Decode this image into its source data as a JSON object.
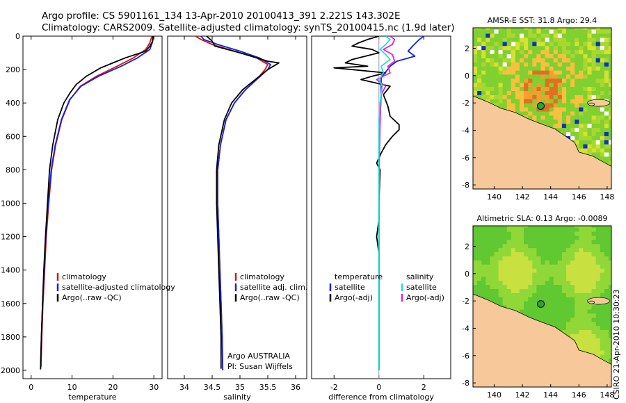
{
  "title_line1": "Argo profile: CS 5901161_134 13-Apr-2010 20100413_391 2.221S 143.302E",
  "title_line2": "Climatology: CARS2009. Satellite-adjusted climatology: synTS_20100415.nc (1.9d later)",
  "side_label": "CSIRO 21-Apr-2010 10:30:23",
  "credit": {
    "line1": "Argo AUSTRALIA",
    "line2": "PI: Susan Wijffels"
  },
  "colors": {
    "climatology": "#dd1111",
    "satellite": "#1122dd",
    "argo": "#000000",
    "satellite_sal": "#22dddd",
    "argo_sal": "#dd22dd",
    "land": "#f6c89a"
  },
  "chart_data": [
    {
      "type": "line",
      "xlabel": "temperature",
      "xlim": [
        -2,
        32
      ],
      "ylim": [
        2050,
        0
      ],
      "y_reversed": true,
      "xticks": [
        0,
        10,
        20,
        30
      ],
      "yticks": [
        0,
        200,
        400,
        600,
        800,
        1000,
        1200,
        1400,
        1600,
        1800,
        2000
      ],
      "legend": [
        {
          "label": "climatology",
          "color": "#dd1111"
        },
        {
          "label": "satellite-adjusted climatology",
          "color": "#1122dd"
        },
        {
          "label": "Argo(..raw -QC)",
          "color": "#000000"
        }
      ],
      "series": [
        {
          "color": "#dd1111",
          "points": [
            [
              29.5,
              0
            ],
            [
              29,
              40
            ],
            [
              28,
              80
            ],
            [
              25,
              130
            ],
            [
              21,
              180
            ],
            [
              16,
              240
            ],
            [
              12,
              300
            ],
            [
              9.5,
              380
            ],
            [
              7.5,
              500
            ],
            [
              6,
              650
            ],
            [
              5,
              800
            ],
            [
              4.3,
              1000
            ],
            [
              3.7,
              1200
            ],
            [
              3.3,
              1400
            ],
            [
              2.9,
              1600
            ],
            [
              2.6,
              1800
            ],
            [
              2.4,
              1980
            ]
          ]
        },
        {
          "color": "#1122dd",
          "points": [
            [
              29.8,
              0
            ],
            [
              29.6,
              40
            ],
            [
              29,
              80
            ],
            [
              26,
              130
            ],
            [
              22,
              180
            ],
            [
              16.5,
              240
            ],
            [
              12.2,
              300
            ],
            [
              9.4,
              380
            ],
            [
              7.4,
              500
            ],
            [
              5.9,
              650
            ],
            [
              4.9,
              800
            ],
            [
              4.2,
              1000
            ],
            [
              3.6,
              1200
            ],
            [
              3.2,
              1400
            ],
            [
              2.8,
              1600
            ],
            [
              2.5,
              1800
            ],
            [
              2.3,
              1995
            ]
          ]
        },
        {
          "color": "#000000",
          "points": [
            [
              29.8,
              0
            ],
            [
              29.7,
              30
            ],
            [
              29,
              60
            ],
            [
              28,
              90
            ],
            [
              23,
              130
            ],
            [
              20,
              160
            ],
            [
              17,
              190
            ],
            [
              13.5,
              240
            ],
            [
              11,
              290
            ],
            [
              9.5,
              340
            ],
            [
              8,
              400
            ],
            [
              6.5,
              500
            ],
            [
              5.3,
              650
            ],
            [
              4.5,
              800
            ],
            [
              4,
              1000
            ],
            [
              3.5,
              1200
            ],
            [
              3.1,
              1400
            ],
            [
              2.8,
              1600
            ],
            [
              2.5,
              1800
            ],
            [
              2.3,
              1990
            ]
          ]
        }
      ]
    },
    {
      "type": "line",
      "xlabel": "salinity",
      "xlim": [
        33.7,
        36.2
      ],
      "ylim": [
        2050,
        0
      ],
      "y_reversed": true,
      "xticks": [
        34,
        34.5,
        35,
        35.5,
        36
      ],
      "legend": [
        {
          "label": "climatology",
          "color": "#dd1111"
        },
        {
          "label": "satellite adj. clim.",
          "color": "#1122dd"
        },
        {
          "label": "Argo(..raw -QC)",
          "color": "#000000"
        }
      ],
      "series": [
        {
          "color": "#dd1111",
          "points": [
            [
              34.2,
              0
            ],
            [
              34.3,
              20
            ],
            [
              34.5,
              50
            ],
            [
              34.9,
              90
            ],
            [
              35.3,
              130
            ],
            [
              35.5,
              170
            ],
            [
              35.45,
              200
            ],
            [
              35.3,
              260
            ],
            [
              35.1,
              320
            ],
            [
              34.9,
              400
            ],
            [
              34.75,
              500
            ],
            [
              34.65,
              650
            ],
            [
              34.6,
              800
            ],
            [
              34.6,
              1000
            ],
            [
              34.62,
              1200
            ],
            [
              34.64,
              1400
            ],
            [
              34.66,
              1600
            ],
            [
              34.68,
              1800
            ],
            [
              34.69,
              2000
            ]
          ]
        },
        {
          "color": "#1122dd",
          "points": [
            [
              34.3,
              0
            ],
            [
              34.35,
              20
            ],
            [
              34.6,
              50
            ],
            [
              35,
              90
            ],
            [
              35.35,
              130
            ],
            [
              35.55,
              170
            ],
            [
              35.5,
              200
            ],
            [
              35.3,
              260
            ],
            [
              35.1,
              320
            ],
            [
              34.9,
              400
            ],
            [
              34.75,
              500
            ],
            [
              34.65,
              650
            ],
            [
              34.6,
              800
            ],
            [
              34.6,
              1000
            ],
            [
              34.62,
              1200
            ],
            [
              34.64,
              1400
            ],
            [
              34.66,
              1600
            ],
            [
              34.68,
              1800
            ],
            [
              34.69,
              2000
            ]
          ]
        },
        {
          "color": "#000000",
          "points": [
            [
              34.4,
              0
            ],
            [
              34.5,
              30
            ],
            [
              34.55,
              60
            ],
            [
              35,
              100
            ],
            [
              35.3,
              130
            ],
            [
              35.5,
              150
            ],
            [
              35.7,
              160
            ],
            [
              35.6,
              180
            ],
            [
              35.5,
              200
            ],
            [
              35.35,
              240
            ],
            [
              35.2,
              280
            ],
            [
              35.05,
              320
            ],
            [
              34.85,
              400
            ],
            [
              34.72,
              500
            ],
            [
              34.62,
              650
            ],
            [
              34.58,
              800
            ],
            [
              34.58,
              1000
            ],
            [
              34.6,
              1200
            ],
            [
              34.62,
              1400
            ],
            [
              34.64,
              1600
            ],
            [
              34.66,
              1800
            ],
            [
              34.66,
              1990
            ]
          ]
        }
      ]
    },
    {
      "type": "line",
      "xlabel": "difference from climatology",
      "xlim": [
        -3,
        3.2
      ],
      "ylim": [
        2050,
        0
      ],
      "y_reversed": true,
      "xticks": [
        -2,
        0,
        2
      ],
      "legend": [
        {
          "label": "temperature",
          "color": ""
        },
        {
          "label": "satellite",
          "color": "#1122dd"
        },
        {
          "label": "Argo(-adj)",
          "color": "#000000"
        },
        {
          "label": "salinity",
          "color": ""
        },
        {
          "label": "satellite",
          "color": "#22dddd"
        },
        {
          "label": "Argo(-adj)",
          "color": "#dd22dd"
        }
      ],
      "series": [
        {
          "color": "#000000",
          "points": [
            [
              0,
              0
            ],
            [
              -0.5,
              20
            ],
            [
              -0.9,
              40
            ],
            [
              -1.2,
              60
            ],
            [
              -0.3,
              80
            ],
            [
              0,
              100
            ],
            [
              -1.2,
              140
            ],
            [
              -1.5,
              160
            ],
            [
              -0.5,
              180
            ],
            [
              -2,
              190
            ],
            [
              -1.2,
              200
            ],
            [
              0.3,
              220
            ],
            [
              -0.3,
              240
            ],
            [
              -0.8,
              260
            ],
            [
              0.5,
              300
            ],
            [
              0.2,
              350
            ],
            [
              0.4,
              420
            ],
            [
              0.5,
              480
            ],
            [
              0.9,
              530
            ],
            [
              0.9,
              560
            ],
            [
              0.6,
              600
            ],
            [
              0.3,
              650
            ],
            [
              0.1,
              700
            ],
            [
              -0.1,
              760
            ],
            [
              0.05,
              800
            ],
            [
              0,
              1000
            ],
            [
              0,
              1100
            ],
            [
              -0.1,
              1200
            ],
            [
              0,
              1300
            ],
            [
              0,
              1600
            ],
            [
              0,
              2000
            ]
          ]
        },
        {
          "color": "#1122dd",
          "points": [
            [
              2,
              0
            ],
            [
              1.8,
              20
            ],
            [
              1.5,
              60
            ],
            [
              1.3,
              90
            ],
            [
              1.6,
              120
            ],
            [
              0.8,
              150
            ],
            [
              0.5,
              180
            ],
            [
              0.1,
              250
            ],
            [
              0.1,
              350
            ],
            [
              0.05,
              500
            ],
            [
              0.02,
              700
            ],
            [
              0,
              1000
            ],
            [
              0,
              1500
            ],
            [
              0,
              2000
            ]
          ]
        },
        {
          "color": "#dd22dd",
          "points": [
            [
              0.5,
              0
            ],
            [
              0.7,
              20
            ],
            [
              0.6,
              50
            ],
            [
              0.2,
              80
            ],
            [
              0.6,
              110
            ],
            [
              0.7,
              150
            ],
            [
              0.4,
              180
            ],
            [
              0.5,
              220
            ],
            [
              -0.1,
              260
            ],
            [
              0.3,
              300
            ],
            [
              0.1,
              350
            ],
            [
              0.05,
              500
            ],
            [
              0,
              700
            ],
            [
              0,
              1200
            ],
            [
              0,
              2000
            ]
          ]
        },
        {
          "color": "#22dddd",
          "points": [
            [
              0.3,
              0
            ],
            [
              0.5,
              20
            ],
            [
              0.3,
              50
            ],
            [
              0.05,
              80
            ],
            [
              0.3,
              110
            ],
            [
              0.5,
              140
            ],
            [
              0.1,
              180
            ],
            [
              0.2,
              220
            ],
            [
              0,
              260
            ],
            [
              0.15,
              300
            ],
            [
              0.05,
              400
            ],
            [
              0,
              500
            ],
            [
              0,
              2000
            ]
          ]
        }
      ]
    },
    {
      "type": "heatmap",
      "title": "AMSR-E SST: 31.8 Argo: 29.4",
      "xlim": [
        138.5,
        148.3
      ],
      "ylim": [
        -8.3,
        3.5
      ],
      "xticks": [
        140,
        142,
        144,
        146,
        148
      ],
      "yticks": [
        -8,
        -6,
        -4,
        -2,
        0,
        2
      ],
      "marker": {
        "lon": 143.3,
        "lat": -2.22
      }
    },
    {
      "type": "heatmap",
      "title": "Altimetric SLA: 0.13 Argo: -0.0089",
      "xlim": [
        138.5,
        148.3
      ],
      "ylim": [
        -8.3,
        3.5
      ],
      "xticks": [
        140,
        142,
        144,
        146,
        148
      ],
      "yticks": [
        -8,
        -6,
        -4,
        -2,
        0,
        2
      ],
      "marker": {
        "lon": 143.3,
        "lat": -2.22
      }
    }
  ]
}
